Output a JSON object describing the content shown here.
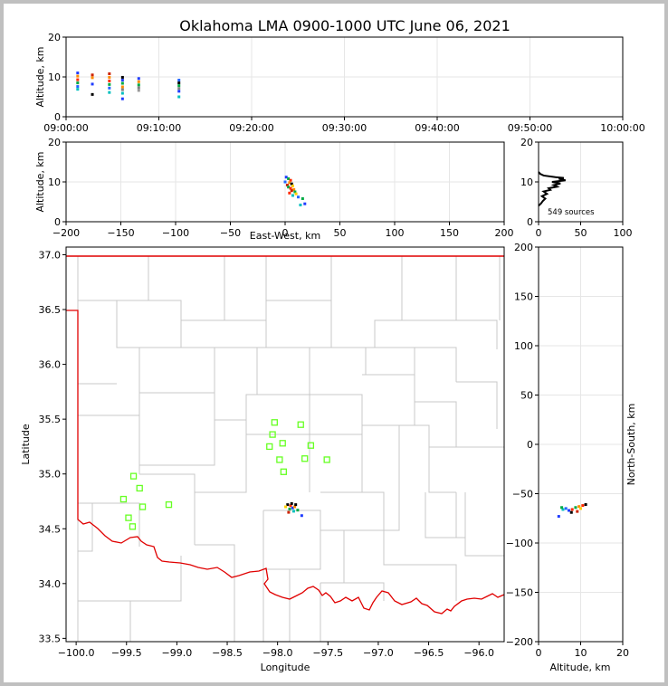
{
  "chart_data": [
    {
      "panel": "altitude-time",
      "type": "scatter",
      "title": "Oklahoma LMA 0900-1000 UTC June 06, 2021",
      "xlabel": "",
      "ylabel": "Altitude, km",
      "xlim": [
        "09:00:00",
        "10:00:00"
      ],
      "ylim": [
        0,
        20
      ],
      "x_ticks": [
        "09:00:00",
        "09:10:00",
        "09:20:00",
        "09:30:00",
        "09:40:00",
        "09:50:00",
        "10:00:00"
      ],
      "y_ticks": [
        "0",
        "10",
        "20"
      ],
      "grid": true,
      "points": [
        {
          "x": "09:01:15",
          "y": 11.0,
          "color": "#1f3cff"
        },
        {
          "x": "09:01:15",
          "y": 10.2,
          "color": "#ff8c00"
        },
        {
          "x": "09:01:15",
          "y": 9.3,
          "color": "#ff2a00"
        },
        {
          "x": "09:01:15",
          "y": 8.5,
          "color": "#00aa44"
        },
        {
          "x": "09:01:15",
          "y": 7.6,
          "color": "#2266ff"
        },
        {
          "x": "09:01:15",
          "y": 6.9,
          "color": "#00bfbf"
        },
        {
          "x": "09:02:50",
          "y": 10.5,
          "color": "#cc2200"
        },
        {
          "x": "09:02:50",
          "y": 9.8,
          "color": "#ff8c00"
        },
        {
          "x": "09:02:50",
          "y": 8.2,
          "color": "#1f3cff"
        },
        {
          "x": "09:02:50",
          "y": 5.6,
          "color": "#000000"
        },
        {
          "x": "09:04:40",
          "y": 10.8,
          "color": "#cc2200"
        },
        {
          "x": "09:04:40",
          "y": 9.9,
          "color": "#ff8c00"
        },
        {
          "x": "09:04:40",
          "y": 9.0,
          "color": "#ff2a00"
        },
        {
          "x": "09:04:40",
          "y": 8.1,
          "color": "#00aa44"
        },
        {
          "x": "09:04:40",
          "y": 7.2,
          "color": "#2266ff"
        },
        {
          "x": "09:04:40",
          "y": 6.1,
          "color": "#00bfbf"
        },
        {
          "x": "09:06:05",
          "y": 9.9,
          "color": "#000000"
        },
        {
          "x": "09:06:05",
          "y": 9.2,
          "color": "#1f3cff"
        },
        {
          "x": "09:06:05",
          "y": 8.4,
          "color": "#00aa44"
        },
        {
          "x": "09:06:05",
          "y": 7.5,
          "color": "#ff8c00"
        },
        {
          "x": "09:06:05",
          "y": 6.8,
          "color": "#808080"
        },
        {
          "x": "09:06:05",
          "y": 5.9,
          "color": "#00bfbf"
        },
        {
          "x": "09:06:05",
          "y": 4.5,
          "color": "#1f3cff"
        },
        {
          "x": "09:07:50",
          "y": 9.6,
          "color": "#1f3cff"
        },
        {
          "x": "09:07:50",
          "y": 8.8,
          "color": "#ff8c00"
        },
        {
          "x": "09:07:50",
          "y": 8.0,
          "color": "#00aa44"
        },
        {
          "x": "09:07:50",
          "y": 7.3,
          "color": "#808080"
        },
        {
          "x": "09:07:50",
          "y": 6.6,
          "color": "#999999"
        },
        {
          "x": "09:12:10",
          "y": 9.2,
          "color": "#2266ff"
        },
        {
          "x": "09:12:10",
          "y": 8.5,
          "color": "#000000"
        },
        {
          "x": "09:12:10",
          "y": 7.8,
          "color": "#00aa44"
        },
        {
          "x": "09:12:10",
          "y": 7.1,
          "color": "#808080"
        },
        {
          "x": "09:12:10",
          "y": 6.4,
          "color": "#1f3cff"
        },
        {
          "x": "09:12:10",
          "y": 5.0,
          "color": "#00bfbf"
        }
      ]
    },
    {
      "panel": "east-west-altitude",
      "type": "scatter",
      "xlabel": "East-West, km",
      "ylabel": "Altitude, km",
      "xlim": [
        -200,
        200
      ],
      "ylim": [
        0,
        20
      ],
      "x_ticks": [
        "−200",
        "−150",
        "−100",
        "−50",
        "0",
        "50",
        "100",
        "150",
        "200"
      ],
      "y_ticks": [
        "0",
        "10",
        "20"
      ],
      "grid": true,
      "points": [
        {
          "x": 1,
          "y": 11.2,
          "color": "#1f3cff"
        },
        {
          "x": 3,
          "y": 10.8,
          "color": "#00aa44"
        },
        {
          "x": 5,
          "y": 10.4,
          "color": "#ff2a00"
        },
        {
          "x": 0,
          "y": 10.0,
          "color": "#2266ff"
        },
        {
          "x": 4,
          "y": 9.8,
          "color": "#ff8c00"
        },
        {
          "x": 6,
          "y": 9.5,
          "color": "#000000"
        },
        {
          "x": 2,
          "y": 9.2,
          "color": "#cc2200"
        },
        {
          "x": 7,
          "y": 9.0,
          "color": "#ffd000"
        },
        {
          "x": 3,
          "y": 8.7,
          "color": "#00aa44"
        },
        {
          "x": 5,
          "y": 8.4,
          "color": "#ff2a00"
        },
        {
          "x": 8,
          "y": 8.1,
          "color": "#ff8c00"
        },
        {
          "x": 6,
          "y": 7.8,
          "color": "#cc2200"
        },
        {
          "x": 9,
          "y": 7.5,
          "color": "#00aa44"
        },
        {
          "x": 4,
          "y": 7.2,
          "color": "#ff2a00"
        },
        {
          "x": 10,
          "y": 7.0,
          "color": "#ffd000"
        },
        {
          "x": 7,
          "y": 6.6,
          "color": "#00bfbf"
        },
        {
          "x": 12,
          "y": 6.2,
          "color": "#2266ff"
        },
        {
          "x": 16,
          "y": 5.8,
          "color": "#00aa44"
        },
        {
          "x": 14,
          "y": 4.2,
          "color": "#00bfbf"
        },
        {
          "x": 18,
          "y": 4.5,
          "color": "#1f3cff"
        }
      ]
    },
    {
      "panel": "altitude-histogram",
      "type": "line",
      "xlim": [
        0,
        100
      ],
      "ylim": [
        0,
        20
      ],
      "x_ticks": [
        "0",
        "50",
        "100"
      ],
      "y_ticks": [
        "0",
        "10",
        "20"
      ],
      "grid": true,
      "annotation": "549 sources",
      "x": [
        0,
        3,
        5,
        8,
        4,
        10,
        6,
        14,
        12,
        22,
        18,
        26,
        16,
        32,
        24,
        30,
        20,
        6,
        2,
        0
      ],
      "y": [
        4.0,
        4.6,
        5.2,
        5.8,
        6.4,
        7.0,
        7.6,
        8.0,
        8.4,
        8.8,
        9.2,
        9.6,
        10.0,
        10.4,
        10.8,
        11.0,
        11.2,
        11.6,
        12.0,
        12.5
      ]
    },
    {
      "panel": "plan-view",
      "type": "scatter",
      "xlabel": "Longitude",
      "ylabel": "Latitude",
      "xlim": [
        -100.1,
        -95.75
      ],
      "ylim": [
        33.47,
        37.07
      ],
      "x_ticks": [
        "−100.0",
        "−99.5",
        "−99.0",
        "−98.5",
        "−98.0",
        "−97.5",
        "−97.0",
        "−96.5",
        "−96.0"
      ],
      "y_ticks": [
        "33.5",
        "34.0",
        "34.5",
        "35.0",
        "35.5",
        "36.0",
        "36.5",
        "37.0"
      ],
      "stations": [
        {
          "lon": -98.03,
          "lat": 35.47
        },
        {
          "lon": -97.77,
          "lat": 35.45
        },
        {
          "lon": -98.05,
          "lat": 35.36
        },
        {
          "lon": -98.08,
          "lat": 35.25
        },
        {
          "lon": -97.95,
          "lat": 35.28
        },
        {
          "lon": -97.67,
          "lat": 35.26
        },
        {
          "lon": -97.98,
          "lat": 35.13
        },
        {
          "lon": -97.73,
          "lat": 35.14
        },
        {
          "lon": -97.51,
          "lat": 35.13
        },
        {
          "lon": -97.94,
          "lat": 35.02
        },
        {
          "lon": -99.43,
          "lat": 34.98
        },
        {
          "lon": -99.37,
          "lat": 34.87
        },
        {
          "lon": -99.53,
          "lat": 34.77
        },
        {
          "lon": -99.34,
          "lat": 34.7
        },
        {
          "lon": -99.08,
          "lat": 34.72
        },
        {
          "lon": -99.48,
          "lat": 34.6
        },
        {
          "lon": -99.44,
          "lat": 34.52
        }
      ],
      "points": [
        {
          "lon": -97.9,
          "lat": 34.72,
          "color": "#000000"
        },
        {
          "lon": -97.87,
          "lat": 34.71,
          "color": "#ff2a00"
        },
        {
          "lon": -97.85,
          "lat": 34.69,
          "color": "#1f3cff"
        },
        {
          "lon": -97.88,
          "lat": 34.68,
          "color": "#00aa44"
        },
        {
          "lon": -97.83,
          "lat": 34.7,
          "color": "#ff8c00"
        },
        {
          "lon": -97.86,
          "lat": 34.73,
          "color": "#000000"
        },
        {
          "lon": -97.84,
          "lat": 34.66,
          "color": "#00bfbf"
        },
        {
          "lon": -97.92,
          "lat": 34.7,
          "color": "#ffd000"
        },
        {
          "lon": -97.8,
          "lat": 34.67,
          "color": "#00aa44"
        },
        {
          "lon": -97.76,
          "lat": 34.62,
          "color": "#1f3cff"
        },
        {
          "lon": -97.89,
          "lat": 34.65,
          "color": "#cc2200"
        },
        {
          "lon": -97.82,
          "lat": 34.72,
          "color": "#000000"
        }
      ]
    },
    {
      "panel": "altitude-north-south",
      "type": "scatter",
      "xlabel": "Altitude, km",
      "ylabel": "North-South, km",
      "xlim": [
        0,
        20
      ],
      "ylim": [
        -200,
        200
      ],
      "x_ticks": [
        "0",
        "10",
        "20"
      ],
      "y_ticks": [
        "−200",
        "−150",
        "−100",
        "−50",
        "0",
        "50",
        "100",
        "150",
        "200"
      ],
      "grid": true,
      "points": [
        {
          "x": 10.5,
          "y": -62,
          "color": "#ff2a00"
        },
        {
          "x": 11.2,
          "y": -61,
          "color": "#000000"
        },
        {
          "x": 9.6,
          "y": -63,
          "color": "#ff8c00"
        },
        {
          "x": 8.8,
          "y": -64,
          "color": "#00aa44"
        },
        {
          "x": 8.0,
          "y": -66,
          "color": "#ff2a00"
        },
        {
          "x": 7.2,
          "y": -67,
          "color": "#1f3cff"
        },
        {
          "x": 6.5,
          "y": -65,
          "color": "#2266ff"
        },
        {
          "x": 5.8,
          "y": -66,
          "color": "#00bfbf"
        },
        {
          "x": 7.8,
          "y": -69,
          "color": "#000000"
        },
        {
          "x": 9.2,
          "y": -68,
          "color": "#cc2200"
        },
        {
          "x": 10.0,
          "y": -65,
          "color": "#ffd000"
        },
        {
          "x": 4.8,
          "y": -73,
          "color": "#1f3cff"
        },
        {
          "x": 5.5,
          "y": -64,
          "color": "#00aa44"
        }
      ]
    }
  ]
}
